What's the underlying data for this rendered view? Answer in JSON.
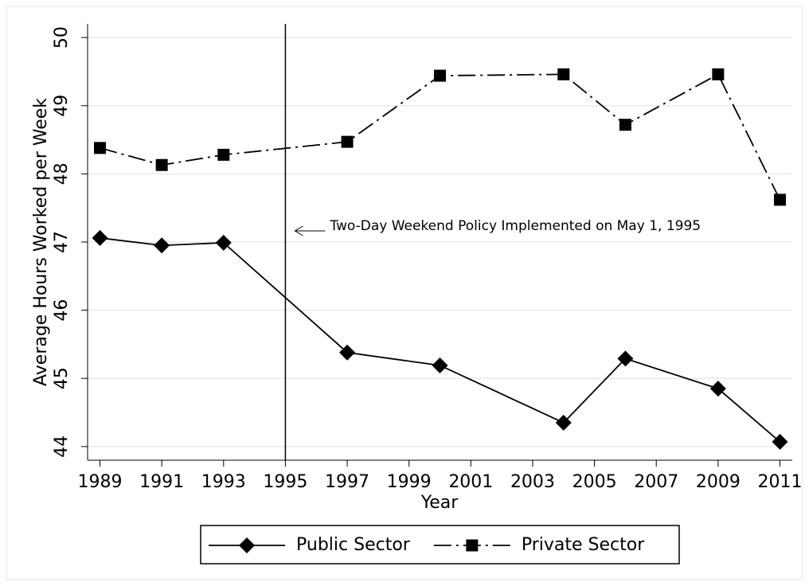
{
  "chart_data": {
    "type": "line",
    "x_label": "Year",
    "y_label": "Average Hours Worked per Week",
    "x": [
      1989,
      1991,
      1993,
      1997,
      2000,
      2004,
      2006,
      2009,
      2011
    ],
    "series": [
      {
        "name": "Public Sector",
        "color": "#000000",
        "marker": "diamond",
        "line_style": "solid",
        "values": [
          47.06,
          46.95,
          46.99,
          45.38,
          45.19,
          44.35,
          45.29,
          44.85,
          44.07
        ]
      },
      {
        "name": "Private Sector",
        "color": "#000000",
        "marker": "square",
        "line_style": "dashdot",
        "values": [
          48.38,
          48.13,
          48.28,
          48.47,
          49.44,
          49.46,
          48.72,
          49.46,
          47.62
        ]
      }
    ],
    "xlim": [
      1988.6,
      2011.4
    ],
    "xticks": [
      1989,
      1991,
      1993,
      1995,
      1997,
      1999,
      2001,
      2003,
      2005,
      2007,
      2009,
      2011
    ],
    "ylim": [
      43.8,
      50.2
    ],
    "yticks": [
      44,
      45,
      46,
      47,
      48,
      49,
      50
    ],
    "grid": true,
    "vline": 1995,
    "annotation": "Two-Day Weekend Policy Implemented on May 1, 1995",
    "legend": "bottom"
  }
}
